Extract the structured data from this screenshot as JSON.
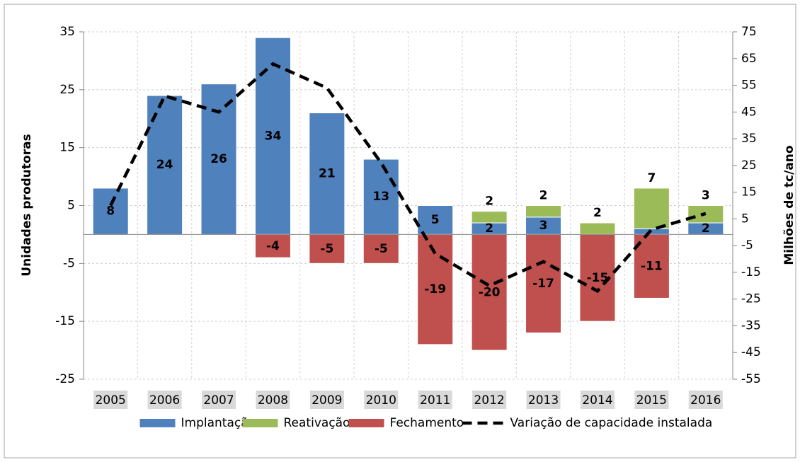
{
  "chart_data": {
    "type": "bar",
    "stacked": true,
    "y_label": "Unidades produtoras",
    "y2_label": "Milhões de tc/ano",
    "categories": [
      "2005",
      "2006",
      "2007",
      "2008",
      "2009",
      "2010",
      "2011",
      "2012",
      "2013",
      "2014",
      "2015",
      "2016"
    ],
    "series": [
      {
        "name": "Implantação",
        "color": "#4f81bd",
        "label_color": "#ffffff",
        "values": [
          8,
          24,
          26,
          34,
          21,
          13,
          5,
          2,
          3,
          null,
          1,
          2
        ],
        "value_labels": [
          "8",
          "24",
          "26",
          "34",
          "21",
          "13",
          "5",
          "2",
          "3",
          null,
          null,
          "2"
        ]
      },
      {
        "name": "Reativação",
        "color": "#9bbb59",
        "label_color": "#77933c",
        "values": [
          null,
          null,
          null,
          null,
          null,
          null,
          null,
          2,
          2,
          2,
          7,
          3
        ],
        "value_labels": [
          null,
          null,
          null,
          null,
          null,
          null,
          null,
          "2",
          "2",
          "2",
          "7",
          "3"
        ]
      },
      {
        "name": "Fechamento",
        "color": "#c0504d",
        "label_color": "#ffffff",
        "values": [
          null,
          null,
          null,
          -4,
          -5,
          -5,
          -19,
          -20,
          -17,
          -15,
          -11,
          null
        ],
        "value_labels": [
          null,
          null,
          null,
          "-4",
          "-5",
          "-5",
          "-19",
          "-20",
          "-17",
          "-15",
          "-11",
          null
        ]
      },
      {
        "name": "Variação de capacidade instalada",
        "type": "line",
        "axis": "y2",
        "color": "#000000",
        "dashed": true,
        "values": [
          10,
          51,
          45,
          63,
          54,
          26,
          -8,
          -20,
          -11,
          -22,
          1,
          7
        ]
      }
    ],
    "ylim": [
      -25,
      35
    ],
    "yticks": [
      -25,
      -15,
      -5,
      5,
      15,
      25,
      35
    ],
    "y2lim": [
      -55,
      75
    ],
    "y2ticks": [
      -55,
      -45,
      -35,
      -25,
      -15,
      -5,
      5,
      15,
      25,
      35,
      45,
      55,
      65,
      75
    ],
    "grid": true,
    "legend": "bottom"
  }
}
